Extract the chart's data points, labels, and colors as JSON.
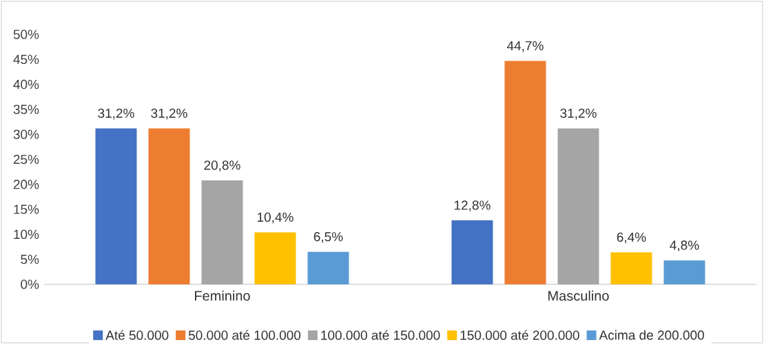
{
  "chart_data": {
    "type": "bar",
    "categories": [
      "Feminino",
      "Masculino"
    ],
    "series": [
      {
        "name": "Até 50.000",
        "color": "#4472c4",
        "values": [
          31.2,
          12.8
        ],
        "value_labels": [
          "31,2%",
          "12,8%"
        ]
      },
      {
        "name": "50.000 até 100.000",
        "color": "#ed7d31",
        "values": [
          31.2,
          44.7
        ],
        "value_labels": [
          "31,2%",
          "44,7%"
        ]
      },
      {
        "name": "100.000 até 150.000",
        "color": "#a5a5a5",
        "values": [
          20.8,
          31.2
        ],
        "value_labels": [
          "20,8%",
          "31,2%"
        ]
      },
      {
        "name": "150.000 até 200.000",
        "color": "#ffc000",
        "values": [
          10.4,
          6.4
        ],
        "value_labels": [
          "10,4%",
          "6,4%"
        ]
      },
      {
        "name": "Acima de 200.000",
        "color": "#5b9bd5",
        "values": [
          6.5,
          4.8
        ],
        "value_labels": [
          "6,5%",
          "4,8%"
        ]
      }
    ],
    "ylim": [
      0,
      50
    ],
    "yticks": [
      {
        "value": 0,
        "label": "0%"
      },
      {
        "value": 5,
        "label": "5%"
      },
      {
        "value": 10,
        "label": "10%"
      },
      {
        "value": 15,
        "label": "15%"
      },
      {
        "value": 20,
        "label": "20%"
      },
      {
        "value": 25,
        "label": "25%"
      },
      {
        "value": 30,
        "label": "30%"
      },
      {
        "value": 35,
        "label": "35%"
      },
      {
        "value": 40,
        "label": "40%"
      },
      {
        "value": 45,
        "label": "45%"
      },
      {
        "value": 50,
        "label": "50%"
      }
    ],
    "legend": "bottom"
  }
}
